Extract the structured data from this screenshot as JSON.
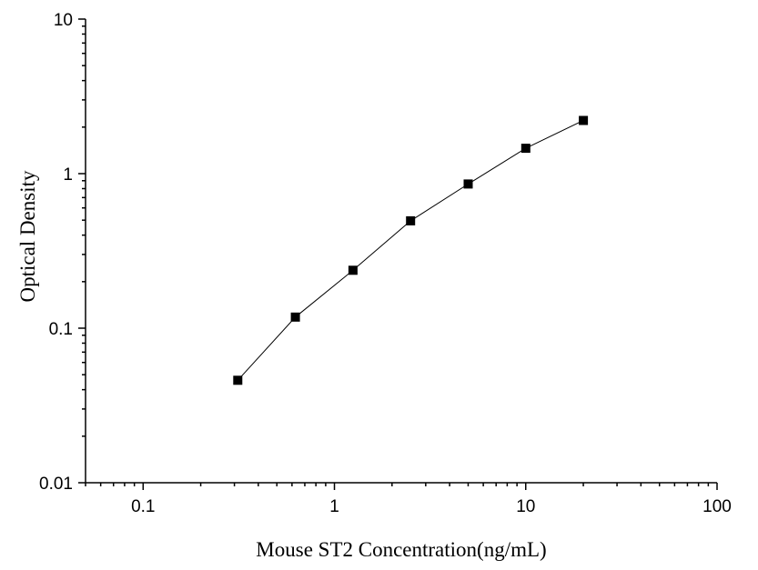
{
  "chart_data": {
    "type": "scatter",
    "title": "",
    "xlabel": "Mouse ST2 Concentration(ng/mL)",
    "ylabel": "Optical Density",
    "xscale": "log",
    "yscale": "log",
    "xlim": [
      0.05,
      100
    ],
    "ylim": [
      0.01,
      10
    ],
    "x_ticks": [
      0.1,
      1,
      10,
      100
    ],
    "x_tick_labels": [
      "0.1",
      "1",
      "10",
      "100"
    ],
    "y_ticks": [
      0.01,
      0.1,
      1,
      10
    ],
    "y_tick_labels": [
      "0.01",
      "0.1",
      "1",
      "10"
    ],
    "grid": false,
    "connect_points": true,
    "marker": "square",
    "series": [
      {
        "x": [
          0.3125,
          0.625,
          1.25,
          2.5,
          5,
          10,
          20
        ],
        "y": [
          0.046,
          0.118,
          0.237,
          0.495,
          0.857,
          1.46,
          2.21
        ]
      }
    ],
    "colors": {
      "line": "#000000",
      "marker": "#000000",
      "axis": "#000000",
      "background": "#ffffff"
    }
  }
}
